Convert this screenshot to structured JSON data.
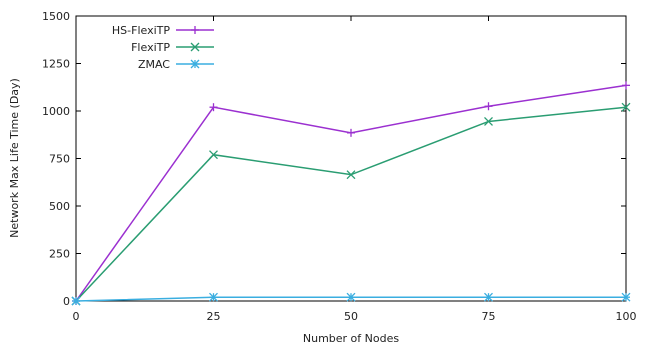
{
  "chart_data": {
    "type": "line",
    "xlabel": "Number of Nodes",
    "ylabel": "Network Max Life Time (Day)",
    "x": [
      0,
      25,
      50,
      75,
      100
    ],
    "xlim": [
      0,
      100
    ],
    "ylim": [
      0,
      1500
    ],
    "xticks": [
      0,
      25,
      50,
      75,
      100
    ],
    "yticks": [
      0,
      250,
      500,
      750,
      1000,
      1250,
      1500
    ],
    "grid": false,
    "legend_position": "top-left",
    "series": [
      {
        "name": "HS-FlexiTP",
        "color": "#9b30d0",
        "marker": "plus",
        "values": [
          0,
          1020,
          885,
          1025,
          1135
        ]
      },
      {
        "name": "FlexiTP",
        "color": "#2a9d72",
        "marker": "cross",
        "values": [
          0,
          770,
          665,
          945,
          1020
        ]
      },
      {
        "name": "ZMAC",
        "color": "#3aaee0",
        "marker": "asterisk",
        "values": [
          0,
          20,
          20,
          20,
          20
        ]
      }
    ]
  }
}
